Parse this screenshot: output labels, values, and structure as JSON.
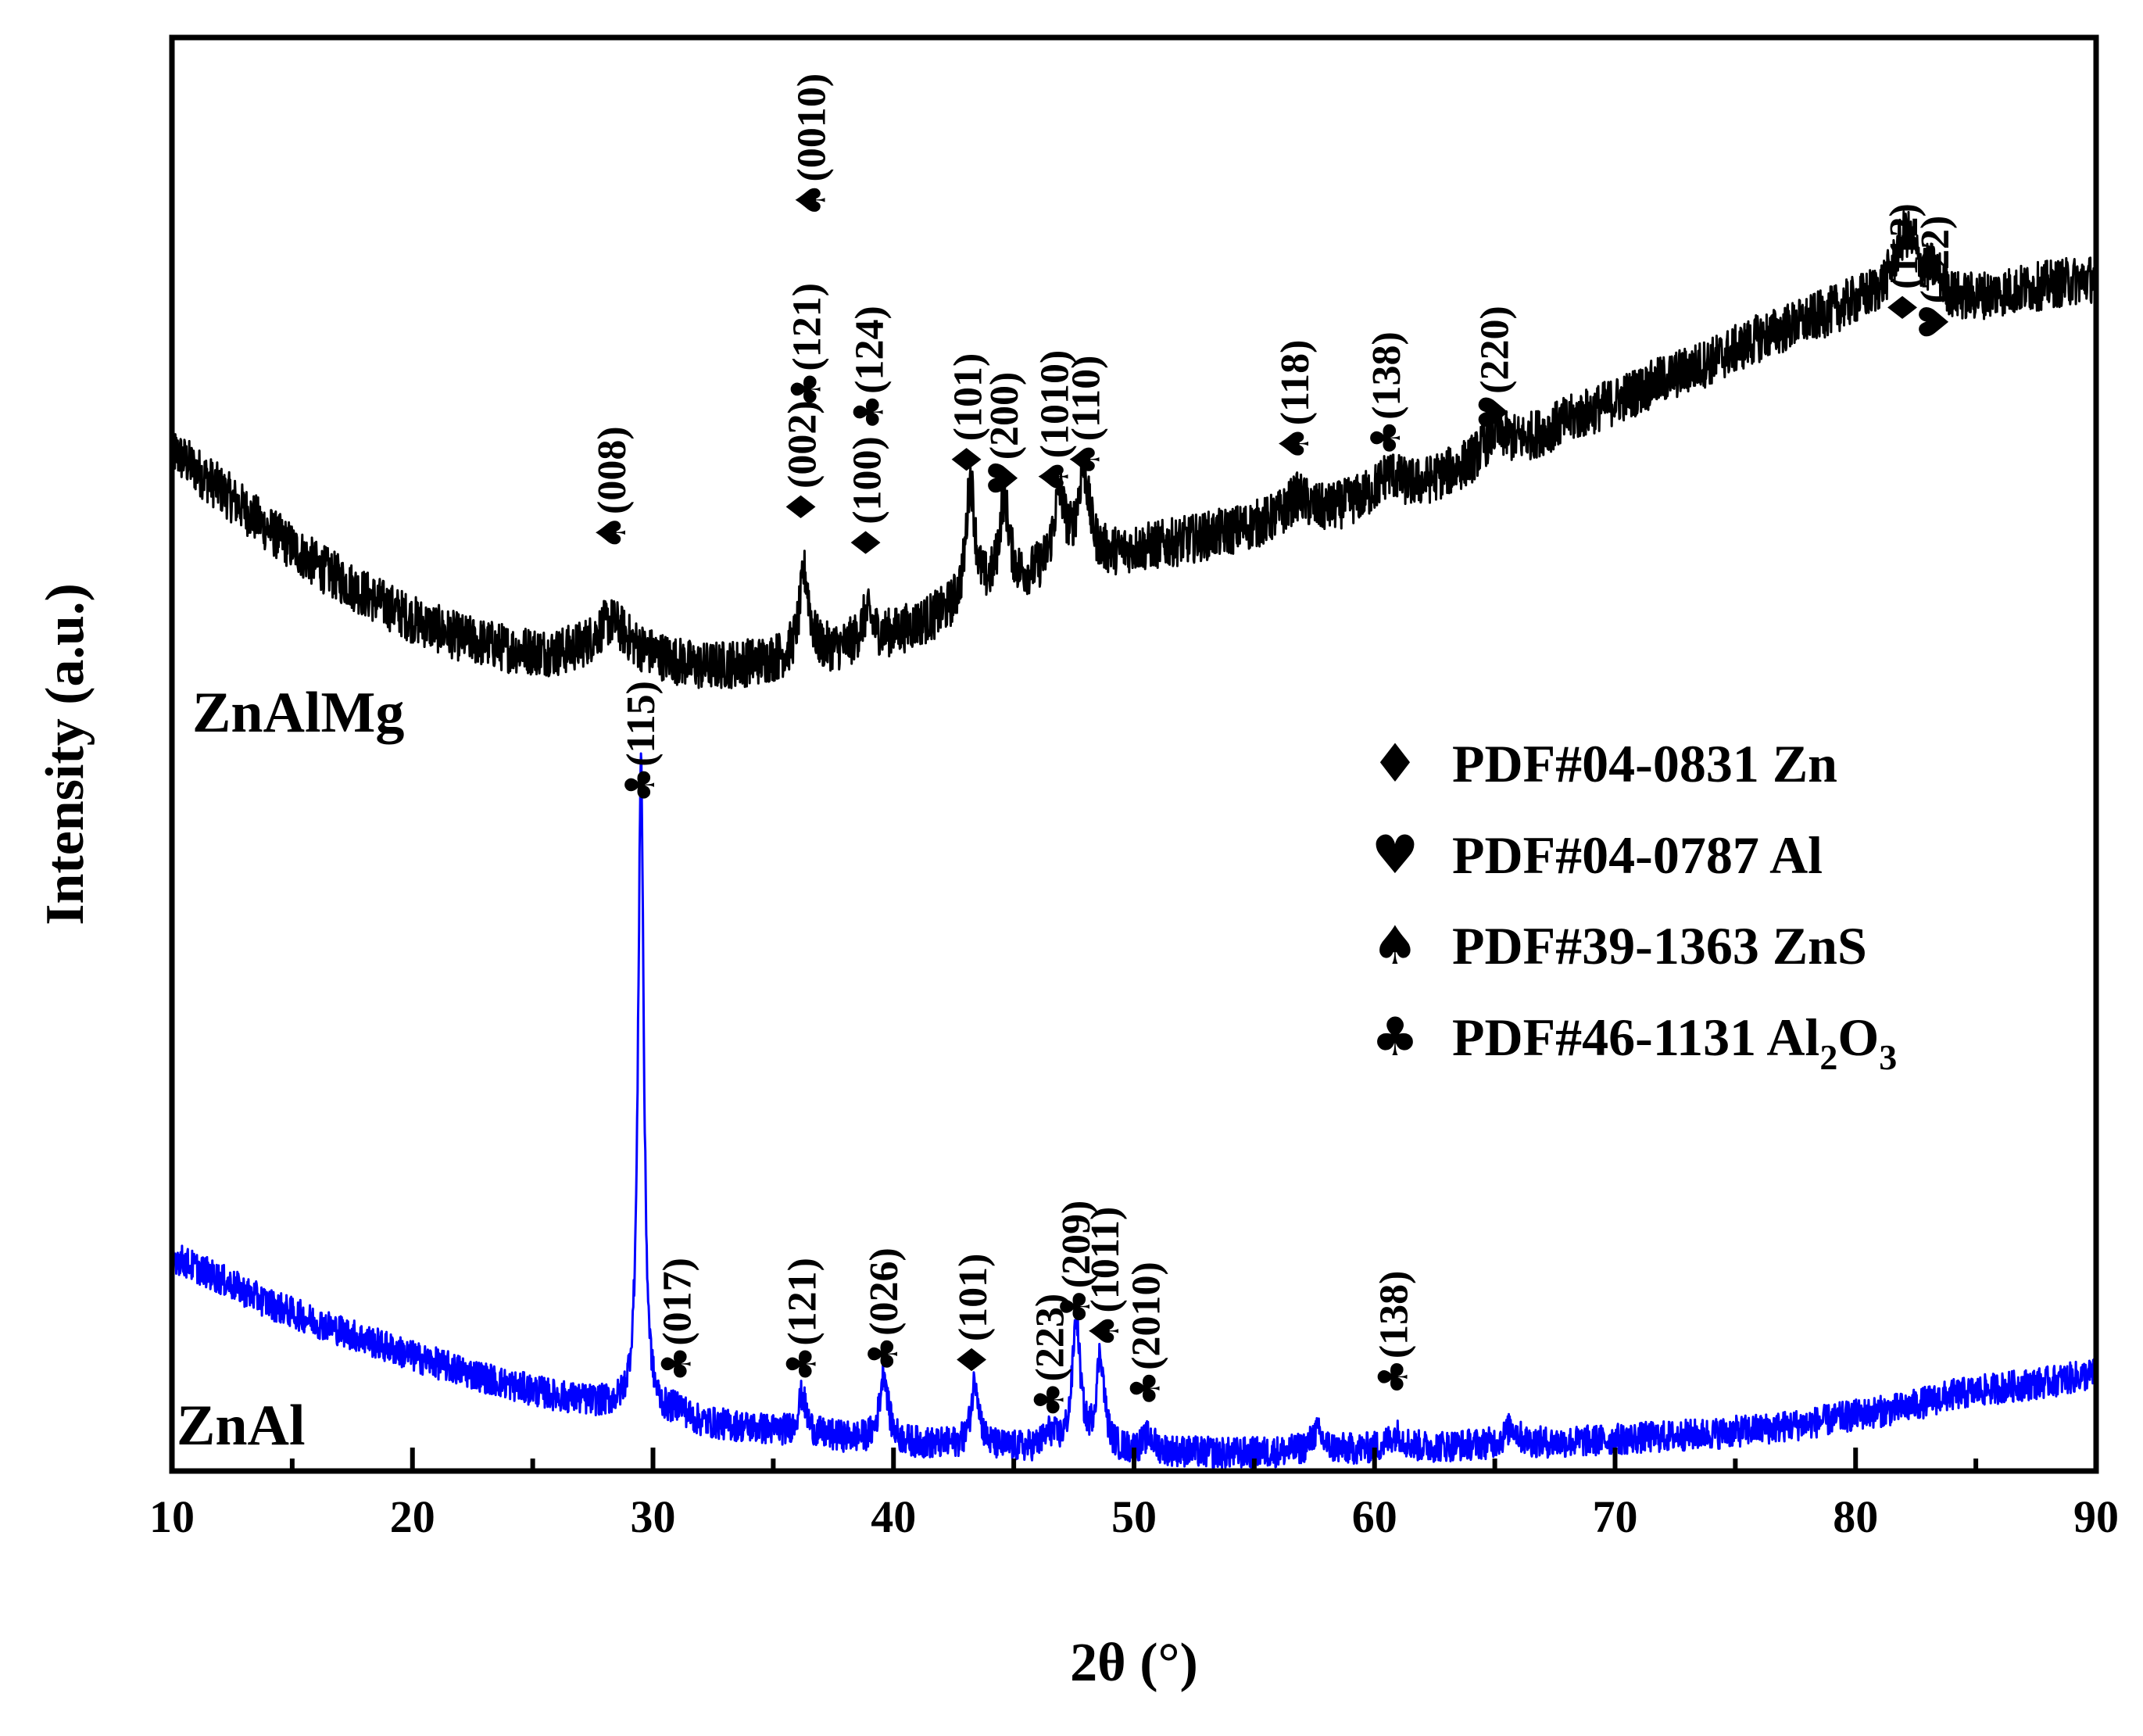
{
  "chart_data": {
    "type": "line",
    "title": "",
    "xlabel": "2θ (°)",
    "ylabel": "Intensity (a.u.)",
    "xlim": [
      10,
      90
    ],
    "ylim": [
      0,
      100
    ],
    "x_major_ticks": [
      10,
      20,
      30,
      40,
      50,
      60,
      70,
      80,
      90
    ],
    "x_tick_labels": [
      "10",
      "20",
      "30",
      "40",
      "50",
      "60",
      "70",
      "80",
      "90"
    ],
    "x_minor_step": 5,
    "y_tick_labels": false,
    "series": [
      {
        "name": "ZnAlMg",
        "color": "#000000",
        "label": "ZnAlMg",
        "noise": 1.7,
        "profile": [
          [
            10,
            71.2
          ],
          [
            12,
            68.5
          ],
          [
            14,
            65.7
          ],
          [
            16,
            63.2
          ],
          [
            18,
            61.2
          ],
          [
            20,
            59.4
          ],
          [
            22,
            58.1
          ],
          [
            24,
            57.3
          ],
          [
            26,
            56.9
          ],
          [
            28,
            57.3
          ],
          [
            30,
            56.7
          ],
          [
            32,
            56.0
          ],
          [
            34,
            56.3
          ],
          [
            36,
            56.7
          ],
          [
            38,
            57.3
          ],
          [
            40,
            58.3
          ],
          [
            42,
            59.6
          ],
          [
            44,
            61.0
          ],
          [
            46,
            62.3
          ],
          [
            48,
            63.2
          ],
          [
            50,
            64.2
          ],
          [
            52,
            64.8
          ],
          [
            54,
            65.5
          ],
          [
            56,
            66.3
          ],
          [
            58,
            66.9
          ],
          [
            60,
            68.0
          ],
          [
            62,
            68.8
          ],
          [
            64,
            70.1
          ],
          [
            66,
            71.6
          ],
          [
            68,
            73.2
          ],
          [
            70,
            74.6
          ],
          [
            72,
            76.1
          ],
          [
            74,
            77.4
          ],
          [
            76,
            79.0
          ],
          [
            78,
            80.2
          ],
          [
            80,
            81.4
          ],
          [
            82,
            82.0
          ],
          [
            84,
            81.4
          ],
          [
            86,
            82.1
          ],
          [
            88,
            82.7
          ],
          [
            90,
            83.2
          ]
        ],
        "peaks": [
          [
            28.3,
            2.0,
            0.8
          ],
          [
            36.3,
            5.8,
            0.25
          ],
          [
            38.9,
            2.0,
            0.3
          ],
          [
            43.2,
            8.5,
            0.22
          ],
          [
            44.6,
            6.2,
            0.25
          ],
          [
            46.9,
            5.0,
            0.3
          ],
          [
            47.9,
            6.3,
            0.3
          ],
          [
            56.8,
            1.4,
            0.5
          ],
          [
            60.6,
            1.3,
            0.5
          ],
          [
            65.0,
            1.6,
            0.6
          ],
          [
            82.1,
            4.2,
            0.6
          ],
          [
            83.3,
            1.5,
            0.4
          ]
        ]
      },
      {
        "name": "ZnAl",
        "color": "#0000ff",
        "label": "ZnAl",
        "noise": 1.1,
        "profile": [
          [
            10,
            15.0
          ],
          [
            12,
            13.4
          ],
          [
            14,
            11.7
          ],
          [
            16,
            10.4
          ],
          [
            18,
            9.2
          ],
          [
            20,
            8.0
          ],
          [
            22,
            7.0
          ],
          [
            24,
            6.0
          ],
          [
            26,
            5.2
          ],
          [
            28,
            4.6
          ],
          [
            30,
            3.8
          ],
          [
            32,
            3.3
          ],
          [
            34,
            3.0
          ],
          [
            36,
            2.6
          ],
          [
            38,
            2.3
          ],
          [
            40,
            2.0
          ],
          [
            42,
            1.8
          ],
          [
            44,
            1.6
          ],
          [
            46,
            1.5
          ],
          [
            48,
            1.4
          ],
          [
            50,
            1.3
          ],
          [
            52,
            1.3
          ],
          [
            54,
            1.2
          ],
          [
            56,
            1.3
          ],
          [
            58,
            1.4
          ],
          [
            60,
            1.5
          ],
          [
            62,
            1.6
          ],
          [
            64,
            1.8
          ],
          [
            66,
            1.9
          ],
          [
            68,
            2.0
          ],
          [
            70,
            2.2
          ],
          [
            72,
            2.4
          ],
          [
            74,
            2.6
          ],
          [
            76,
            2.9
          ],
          [
            78,
            3.3
          ],
          [
            80,
            3.9
          ],
          [
            82,
            4.4
          ],
          [
            84,
            5.3
          ],
          [
            86,
            5.8
          ],
          [
            88,
            6.2
          ],
          [
            90,
            6.8
          ]
        ],
        "peaks": [
          [
            29.5,
            45.8,
            0.14
          ],
          [
            31.1,
            0.8,
            0.3
          ],
          [
            36.2,
            2.7,
            0.2
          ],
          [
            39.6,
            4.9,
            0.2
          ],
          [
            43.4,
            4.7,
            0.2
          ],
          [
            46.5,
            1.0,
            0.3
          ],
          [
            47.6,
            9.0,
            0.2
          ],
          [
            48.6,
            6.5,
            0.2
          ],
          [
            50.6,
            1.0,
            0.3
          ],
          [
            57.6,
            1.3,
            0.3
          ],
          [
            60.9,
            1.0,
            0.4
          ],
          [
            65.7,
            1.2,
            0.3
          ]
        ]
      }
    ],
    "annotations": [
      {
        "series": "ZnAlMg",
        "x": 28.3,
        "y": 64.2,
        "symbol": "♠",
        "label": "(008)"
      },
      {
        "series": "ZnAlMg",
        "x": 36.2,
        "y": 66.0,
        "symbol": "♦",
        "label": "(002)"
      },
      {
        "series": "ZnAlMg",
        "x": 36.4,
        "y": 74.2,
        "symbol": "♣",
        "label": "(121)"
      },
      {
        "series": "ZnAlMg",
        "x": 36.6,
        "y": 87.4,
        "symbol": "♠",
        "label": "(0010)"
      },
      {
        "series": "ZnAlMg",
        "x": 38.9,
        "y": 63.5,
        "symbol": "♦",
        "label": "(100)"
      },
      {
        "series": "ZnAlMg",
        "x": 39.0,
        "y": 72.6,
        "symbol": "♣",
        "label": "(124)"
      },
      {
        "series": "ZnAlMg",
        "x": 43.1,
        "y": 69.3,
        "symbol": "♦",
        "label": "(101)"
      },
      {
        "series": "ZnAlMg",
        "x": 44.6,
        "y": 68.0,
        "symbol": "♥",
        "label": "(200)"
      },
      {
        "series": "ZnAlMg",
        "x": 46.7,
        "y": 68.1,
        "symbol": "♠",
        "label": "(1010)"
      },
      {
        "series": "ZnAlMg",
        "x": 48.0,
        "y": 69.3,
        "symbol": "♠",
        "label": "(110)"
      },
      {
        "series": "ZnAlMg",
        "x": 56.7,
        "y": 70.4,
        "symbol": "♠",
        "label": "(118)"
      },
      {
        "series": "ZnAlMg",
        "x": 60.5,
        "y": 70.8,
        "symbol": "♣",
        "label": "(138)"
      },
      {
        "series": "ZnAlMg",
        "x": 65.0,
        "y": 72.6,
        "symbol": "♥",
        "label": "(220)"
      },
      {
        "series": "ZnAlMg",
        "x": 82.0,
        "y": 79.9,
        "symbol": "♦",
        "label": "(112)"
      },
      {
        "series": "ZnAlMg",
        "x": 83.3,
        "y": 78.9,
        "symbol": "♥",
        "label": "(222)"
      },
      {
        "series": "ZnAl",
        "x": 29.5,
        "y": 46.6,
        "symbol": "♣",
        "label": "(115)"
      },
      {
        "series": "ZnAl",
        "x": 31.0,
        "y": 6.2,
        "symbol": "♣",
        "label": "(017)"
      },
      {
        "series": "ZnAl",
        "x": 36.2,
        "y": 6.2,
        "symbol": "♣",
        "label": "(121)"
      },
      {
        "series": "ZnAl",
        "x": 39.6,
        "y": 6.9,
        "symbol": "♣",
        "label": "(026)"
      },
      {
        "series": "ZnAl",
        "x": 43.3,
        "y": 6.5,
        "symbol": "♦",
        "label": "(101)"
      },
      {
        "series": "ZnAl",
        "x": 46.5,
        "y": 3.7,
        "symbol": "♣",
        "label": "(223)"
      },
      {
        "series": "ZnAl",
        "x": 47.6,
        "y": 10.2,
        "symbol": "♣",
        "label": "(209)"
      },
      {
        "series": "ZnAl",
        "x": 48.8,
        "y": 8.5,
        "symbol": "♠",
        "label": "(1011)"
      },
      {
        "series": "ZnAl",
        "x": 50.5,
        "y": 4.5,
        "symbol": "♣",
        "label": "(2010)"
      },
      {
        "series": "ZnAl",
        "x": 60.8,
        "y": 5.3,
        "symbol": "♣",
        "label": "(138)"
      }
    ],
    "legend": {
      "position": "middle-right",
      "entries": [
        {
          "symbol": "♦",
          "text": "PDF#04-0831 Zn"
        },
        {
          "symbol": "♥",
          "text": "PDF#04-0787 Al"
        },
        {
          "symbol": "♠",
          "text": "PDF#39-1363 ZnS"
        },
        {
          "symbol": "♣",
          "text": "PDF#46-1131 Al",
          "sub1": "2",
          "mid": "O",
          "sub2": "3"
        }
      ]
    }
  }
}
